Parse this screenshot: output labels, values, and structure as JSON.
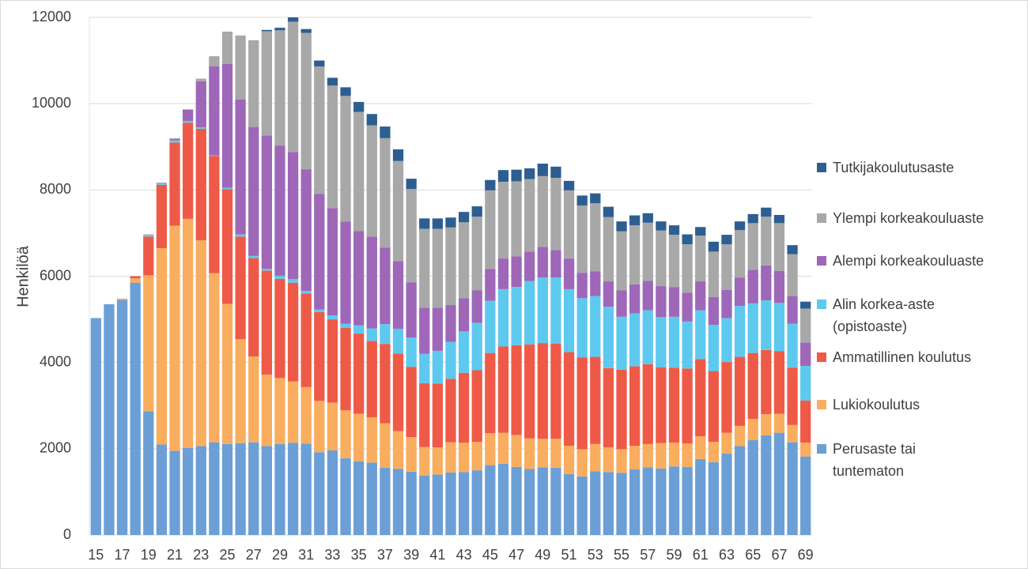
{
  "chart_data": {
    "type": "stacked_bar",
    "y_label": "Henkilöä",
    "categories": [
      15,
      null,
      17,
      null,
      19,
      null,
      21,
      null,
      23,
      null,
      25,
      null,
      27,
      null,
      29,
      null,
      31,
      null,
      33,
      null,
      35,
      null,
      37,
      null,
      39,
      null,
      41,
      null,
      43,
      null,
      45,
      null,
      47,
      null,
      49,
      null,
      51,
      null,
      53,
      null,
      55,
      null,
      57,
      null,
      59,
      null,
      61,
      null,
      63,
      null,
      65,
      null,
      67,
      null,
      69
    ],
    "ylim": [
      0,
      12000
    ],
    "yticks": [
      0,
      2000,
      4000,
      6000,
      8000,
      10000,
      12000
    ],
    "grid": true,
    "legend": "right",
    "series": [
      {
        "name": "Perusaste tai tuntematon",
        "color": "#6b9fd6",
        "values": [
          5030,
          5350,
          5450,
          5850,
          2870,
          2100,
          1950,
          2020,
          2060,
          2150,
          2110,
          2130,
          2150,
          2060,
          2110,
          2140,
          2120,
          1920,
          1960,
          1780,
          1710,
          1680,
          1560,
          1530,
          1470,
          1380,
          1400,
          1450,
          1460,
          1500,
          1620,
          1650,
          1580,
          1530,
          1570,
          1560,
          1410,
          1360,
          1480,
          1460,
          1440,
          1520,
          1570,
          1540,
          1590,
          1580,
          1760,
          1690,
          1890,
          2060,
          2200,
          2310,
          2370,
          2150,
          1820
        ]
      },
      {
        "name": "Lukiokoulutus",
        "color": "#f8ad5f",
        "values": [
          0,
          0,
          30,
          100,
          3150,
          4550,
          5220,
          5310,
          4770,
          3920,
          3250,
          2410,
          1990,
          1660,
          1530,
          1420,
          1310,
          1190,
          1110,
          1110,
          1100,
          1050,
          1030,
          880,
          800,
          660,
          630,
          700,
          680,
          660,
          740,
          720,
          740,
          710,
          660,
          670,
          660,
          630,
          630,
          570,
          550,
          550,
          540,
          590,
          550,
          540,
          530,
          470,
          480,
          470,
          490,
          490,
          440,
          400,
          320
        ]
      },
      {
        "name": "Ammatillinen koulutus",
        "color": "#ee5a47",
        "values": [
          0,
          0,
          0,
          50,
          900,
          1470,
          1930,
          2230,
          2590,
          2720,
          2660,
          2380,
          2280,
          2410,
          2300,
          2290,
          2170,
          2060,
          1930,
          1910,
          1860,
          1770,
          1840,
          1800,
          1630,
          1480,
          1480,
          1470,
          1620,
          1660,
          1860,
          2000,
          2080,
          2180,
          2220,
          2210,
          2170,
          2130,
          2020,
          1840,
          1840,
          1840,
          1850,
          1760,
          1740,
          1740,
          1790,
          1640,
          1640,
          1600,
          1530,
          1490,
          1450,
          1330,
          980
        ]
      },
      {
        "name": "Alin korkea-aste (opistoaste)",
        "color": "#5ec9ef",
        "values": [
          0,
          0,
          0,
          0,
          20,
          30,
          50,
          40,
          30,
          10,
          30,
          50,
          50,
          40,
          70,
          80,
          60,
          60,
          90,
          100,
          190,
          290,
          460,
          570,
          680,
          680,
          760,
          860,
          960,
          1100,
          1210,
          1330,
          1350,
          1470,
          1520,
          1530,
          1460,
          1370,
          1410,
          1420,
          1230,
          1230,
          1250,
          1160,
          1180,
          1090,
          1130,
          1070,
          1020,
          1180,
          1150,
          1150,
          1120,
          1020,
          800
        ]
      },
      {
        "name": "Alempi korkeakouluaste",
        "color": "#9e67b8",
        "values": [
          0,
          0,
          0,
          0,
          0,
          10,
          30,
          260,
          1070,
          2070,
          2870,
          3130,
          2990,
          3090,
          3020,
          2950,
          2820,
          2680,
          2490,
          2370,
          2190,
          2130,
          1770,
          1570,
          1280,
          1070,
          1000,
          850,
          770,
          750,
          740,
          710,
          710,
          680,
          710,
          640,
          710,
          590,
          570,
          590,
          610,
          670,
          680,
          720,
          690,
          670,
          670,
          650,
          650,
          660,
          780,
          810,
          740,
          640,
          540
        ]
      },
      {
        "name": "Ylempi korkeakouluaste",
        "color": "#a8a8a8",
        "values": [
          0,
          0,
          0,
          0,
          30,
          10,
          20,
          10,
          60,
          230,
          750,
          1480,
          1990,
          2420,
          2670,
          3020,
          3160,
          2950,
          2840,
          2910,
          2760,
          2580,
          2540,
          2320,
          2160,
          1830,
          1830,
          1800,
          1760,
          1710,
          1820,
          1780,
          1740,
          1680,
          1640,
          1670,
          1580,
          1560,
          1580,
          1490,
          1370,
          1370,
          1350,
          1290,
          1210,
          1120,
          1060,
          1050,
          1060,
          1100,
          1080,
          1130,
          1110,
          970,
          790
        ]
      },
      {
        "name": "Tutkijakoulutusaste",
        "color": "#2d5e91",
        "values": [
          0,
          0,
          0,
          0,
          0,
          0,
          0,
          0,
          0,
          0,
          0,
          0,
          10,
          30,
          60,
          100,
          90,
          140,
          180,
          200,
          230,
          260,
          270,
          270,
          240,
          240,
          240,
          230,
          240,
          240,
          240,
          270,
          270,
          250,
          290,
          260,
          220,
          230,
          230,
          240,
          230,
          230,
          220,
          210,
          220,
          230,
          200,
          230,
          220,
          200,
          210,
          210,
          190,
          210,
          160
        ]
      }
    ]
  }
}
